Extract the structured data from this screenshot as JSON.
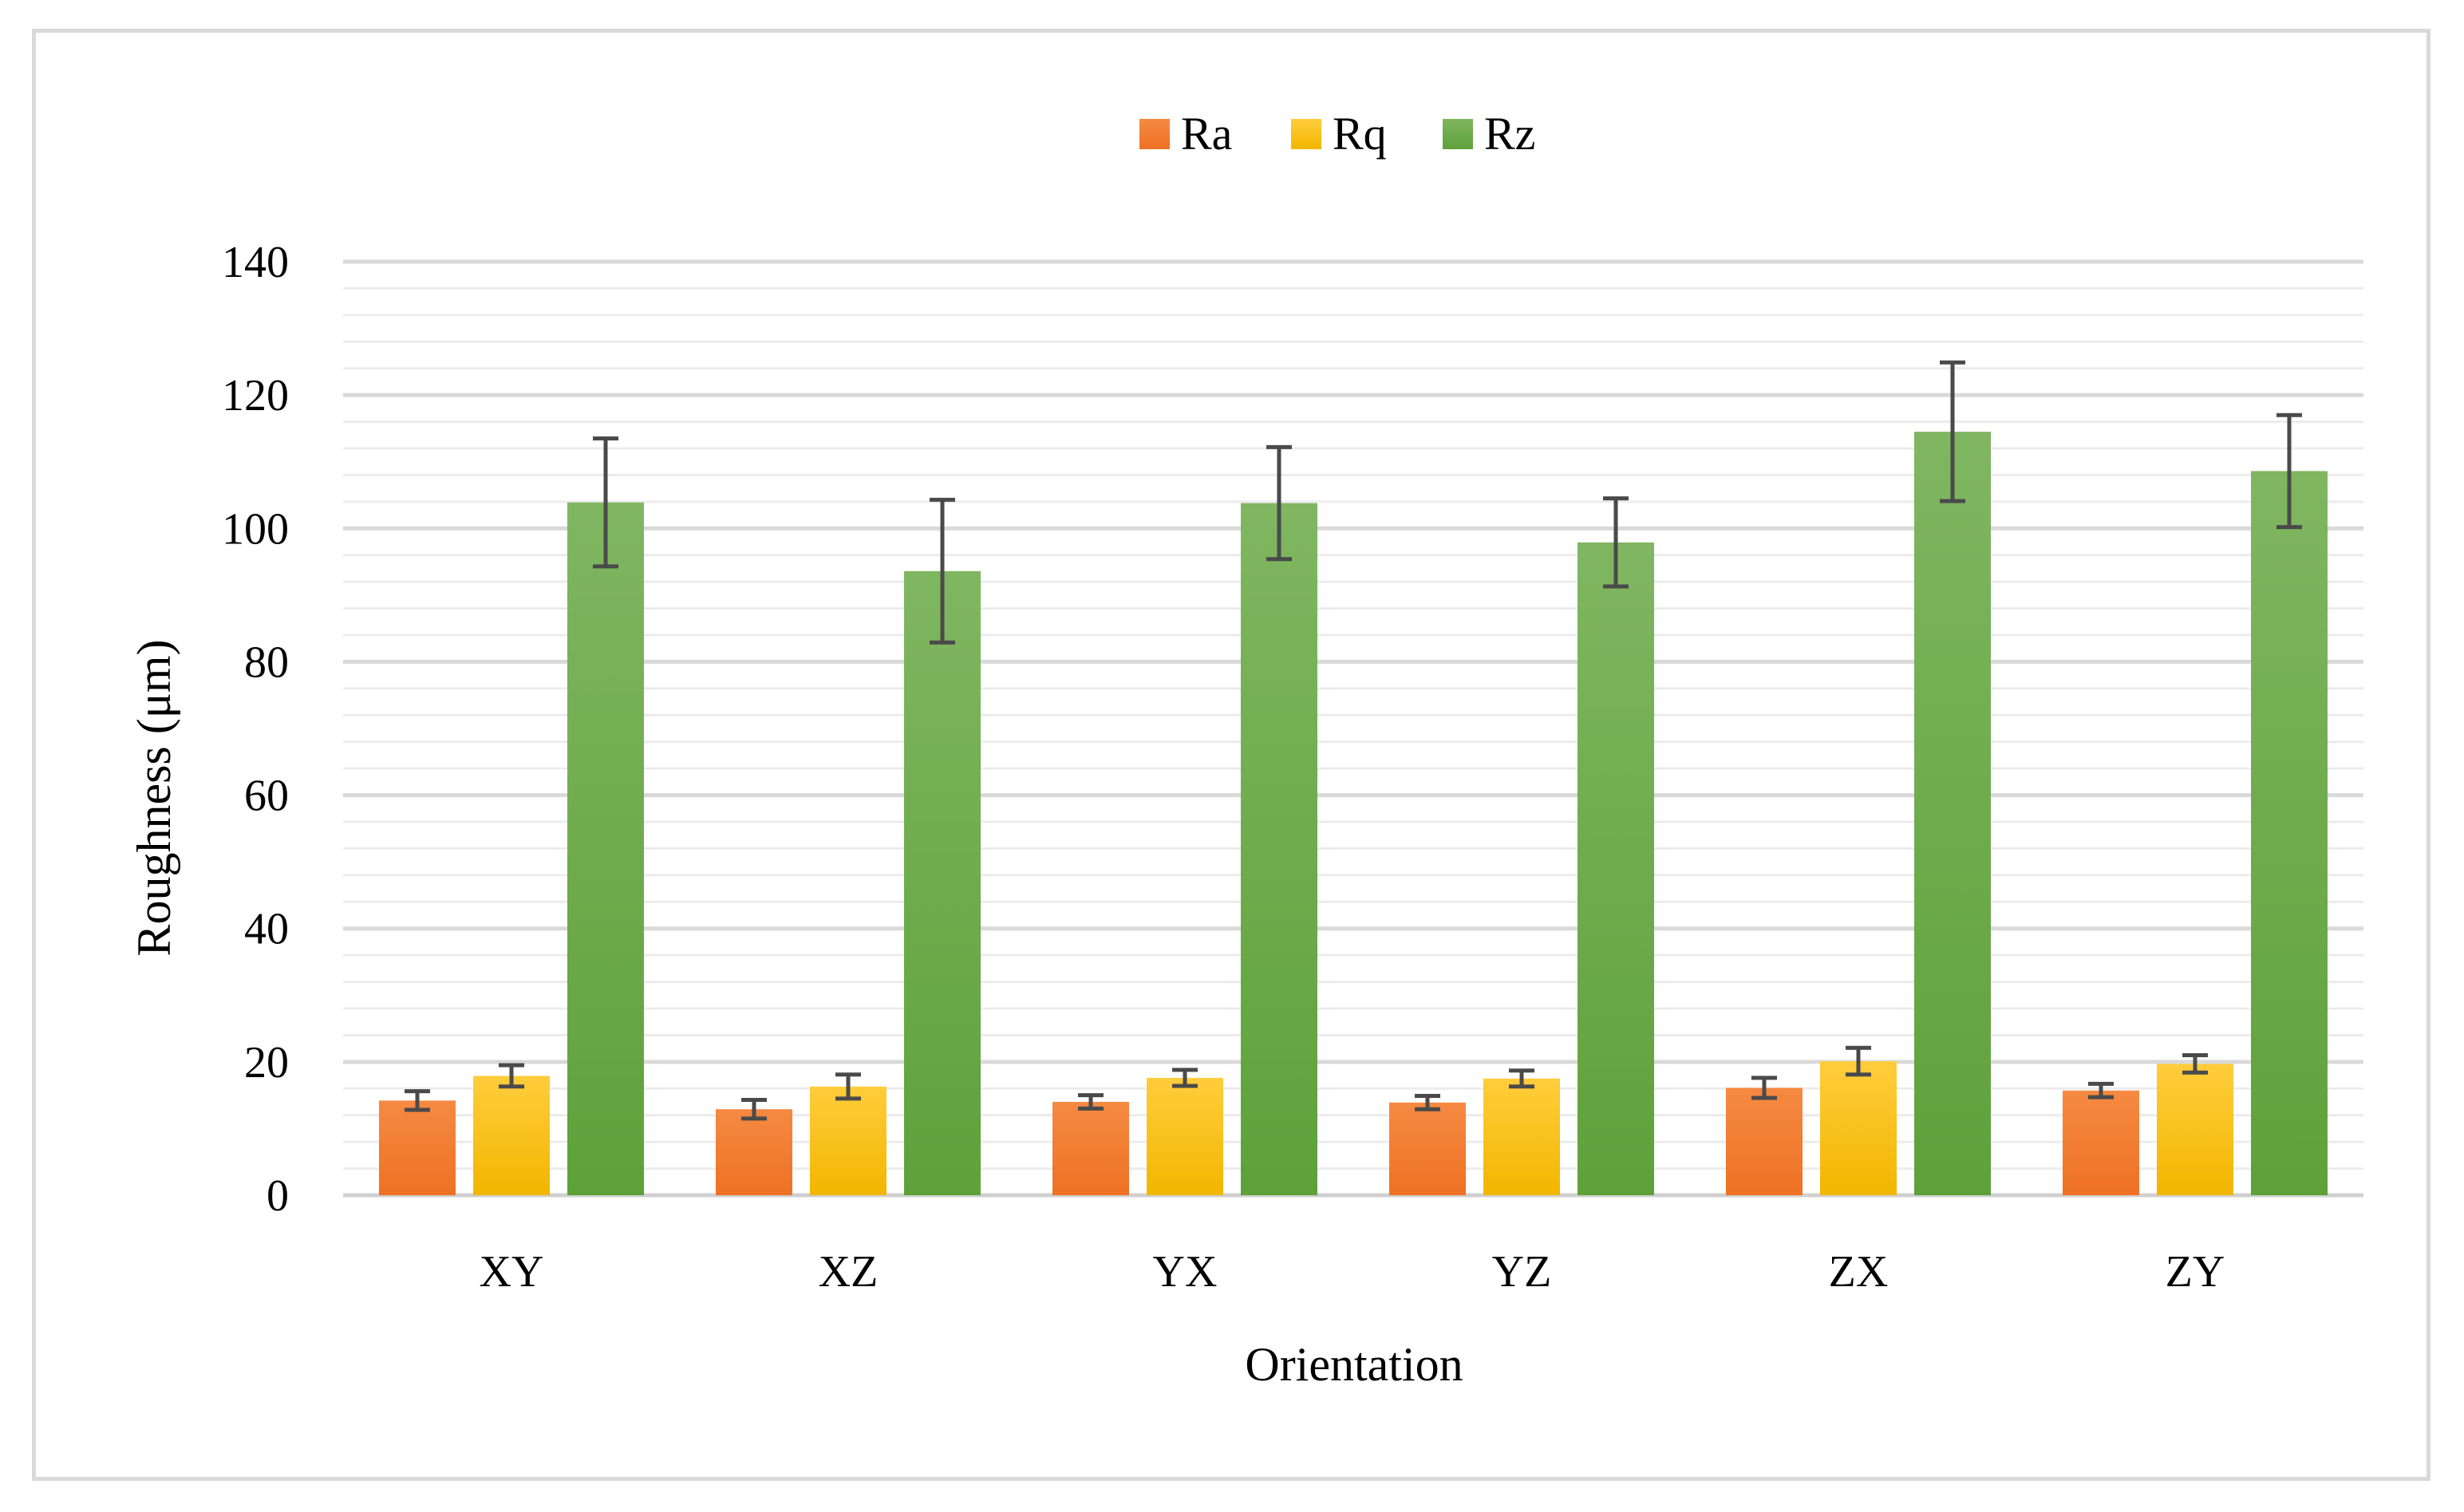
{
  "chart_data": {
    "type": "bar",
    "title": "",
    "xlabel": "Orientation",
    "ylabel": "Roughness (μm)",
    "ylim": [
      0,
      140
    ],
    "yticks": [
      0,
      20,
      40,
      60,
      80,
      100,
      120,
      140
    ],
    "minor_grid_step": 4,
    "grid": true,
    "legend_position": "top-center",
    "categories": [
      "XY",
      "XZ",
      "YX",
      "YZ",
      "ZX",
      "ZY"
    ],
    "series": [
      {
        "name": "Ra",
        "color_top": "#f58a42",
        "color_bottom": "#ee7124",
        "values": [
          14.2,
          12.9,
          14.0,
          13.9,
          16.1,
          15.7
        ],
        "errors": [
          1.4,
          1.4,
          1.0,
          1.0,
          1.5,
          1.0
        ]
      },
      {
        "name": "Rq",
        "color_top": "#ffcd3c",
        "color_bottom": "#f2b600",
        "values": [
          17.9,
          16.3,
          17.6,
          17.5,
          20.1,
          19.7
        ],
        "errors": [
          1.6,
          1.8,
          1.2,
          1.2,
          2.0,
          1.3
        ]
      },
      {
        "name": "Rz",
        "color_top": "#80b661",
        "color_bottom": "#5ea13a",
        "values": [
          103.9,
          93.6,
          103.8,
          97.9,
          114.5,
          108.6
        ],
        "errors": [
          9.6,
          10.7,
          8.4,
          6.6,
          10.4,
          8.4
        ]
      }
    ]
  }
}
